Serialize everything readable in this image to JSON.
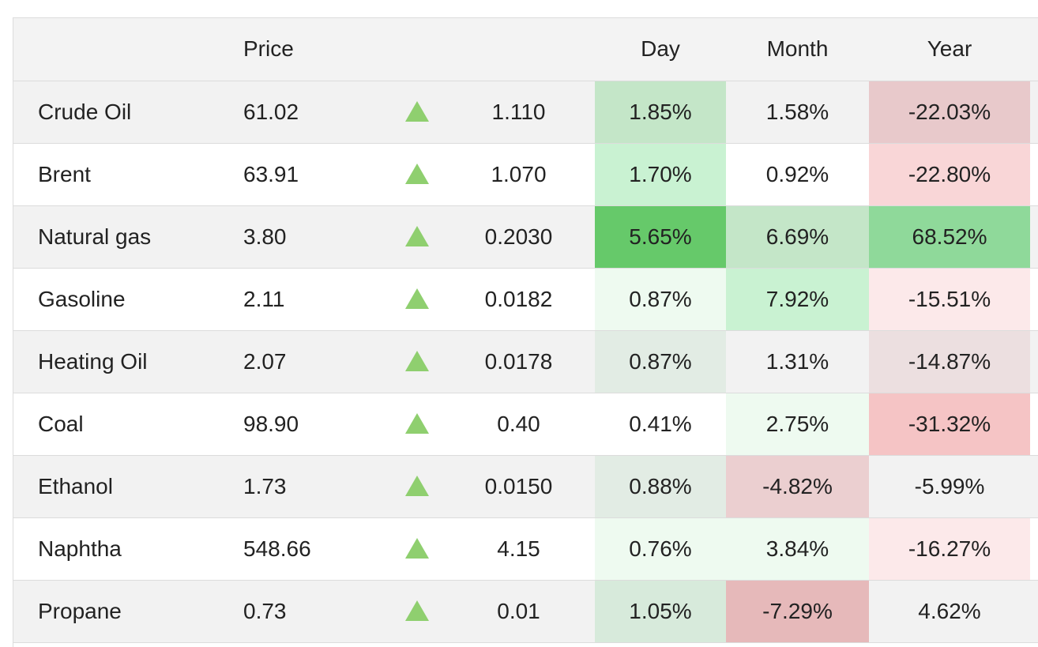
{
  "header": {
    "name": "",
    "price": "Price",
    "arrow": "",
    "change": "",
    "day": "Day",
    "month": "Month",
    "year": "Year"
  },
  "colors": {
    "up_arrow": "#8fcf6f",
    "row_odd": "#f2f2f2",
    "row_even": "#ffffff"
  },
  "rows": [
    {
      "name": "Crude Oil",
      "price": "61.02",
      "direction": "up-arrow-icon",
      "change": "1.110",
      "day": "1.85%",
      "month": "1.58%",
      "year": "-22.03%",
      "day_bg": "#c4e6c8",
      "month_bg": "#f2f2f2",
      "year_bg": "#e8c9cb"
    },
    {
      "name": "Brent",
      "price": "63.91",
      "direction": "up-arrow-icon",
      "change": "1.070",
      "day": "1.70%",
      "month": "0.92%",
      "year": "-22.80%",
      "day_bg": "#c9f2d2",
      "month_bg": "#ffffff",
      "year_bg": "#f9d6d7"
    },
    {
      "name": "Natural gas",
      "price": "3.80",
      "direction": "up-arrow-icon",
      "change": "0.2030",
      "day": "5.65%",
      "month": "6.69%",
      "year": "68.52%",
      "day_bg": "#66c96a",
      "month_bg": "#c4e6c8",
      "year_bg": "#8fd99a"
    },
    {
      "name": "Gasoline",
      "price": "2.11",
      "direction": "up-arrow-icon",
      "change": "0.0182",
      "day": "0.87%",
      "month": "7.92%",
      "year": "-15.51%",
      "day_bg": "#eefaf0",
      "month_bg": "#c9f2d2",
      "year_bg": "#fce9ea"
    },
    {
      "name": "Heating Oil",
      "price": "2.07",
      "direction": "up-arrow-icon",
      "change": "0.0178",
      "day": "0.87%",
      "month": "1.31%",
      "year": "-14.87%",
      "day_bg": "#e2ece4",
      "month_bg": "#f2f2f2",
      "year_bg": "#ecdfe0"
    },
    {
      "name": "Coal",
      "price": "98.90",
      "direction": "up-arrow-icon",
      "change": "0.40",
      "day": "0.41%",
      "month": "2.75%",
      "year": "-31.32%",
      "day_bg": "#ffffff",
      "month_bg": "#eefaf0",
      "year_bg": "#f5c4c5"
    },
    {
      "name": "Ethanol",
      "price": "1.73",
      "direction": "up-arrow-icon",
      "change": "0.0150",
      "day": "0.88%",
      "month": "-4.82%",
      "year": "-5.99%",
      "day_bg": "#e2ece4",
      "month_bg": "#ebcfd0",
      "year_bg": "#f2f2f2"
    },
    {
      "name": "Naphtha",
      "price": "548.66",
      "direction": "up-arrow-icon",
      "change": "4.15",
      "day": "0.76%",
      "month": "3.84%",
      "year": "-16.27%",
      "day_bg": "#eefaf0",
      "month_bg": "#eefaf0",
      "year_bg": "#fce9ea"
    },
    {
      "name": "Propane",
      "price": "0.73",
      "direction": "up-arrow-icon",
      "change": "0.01",
      "day": "1.05%",
      "month": "-7.29%",
      "year": "4.62%",
      "day_bg": "#d7eadb",
      "month_bg": "#e6b9ba",
      "year_bg": "#f2f2f2"
    }
  ]
}
